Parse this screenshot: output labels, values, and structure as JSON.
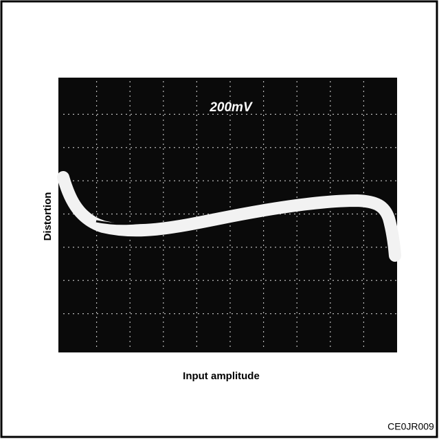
{
  "figure": {
    "screen_label": "200mV",
    "y_axis_label": "Distortion",
    "x_axis_label": "Input amplitude",
    "code": "CE0JR009"
  }
}
